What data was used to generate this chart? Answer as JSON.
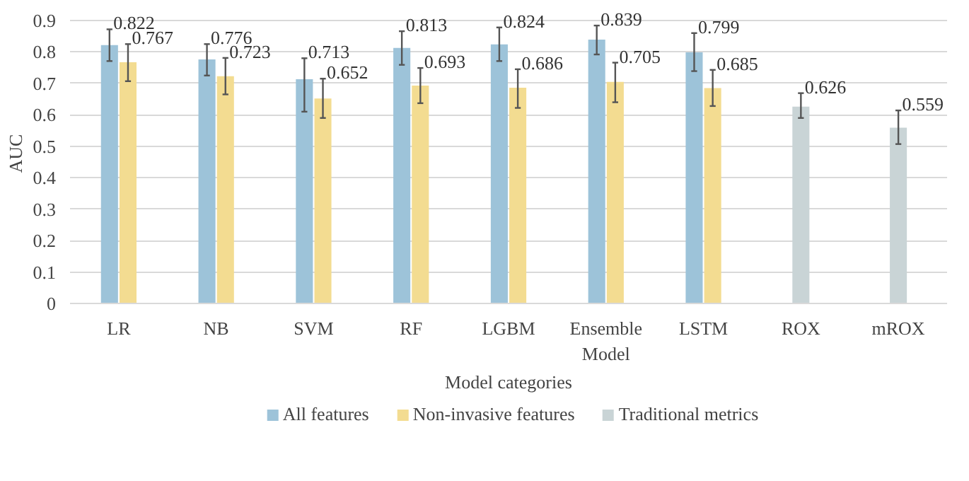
{
  "chart_data": {
    "type": "bar",
    "xlabel": "Model categories",
    "ylabel": "AUC",
    "categories": [
      "LR",
      "NB",
      "SVM",
      "RF",
      "LGBM",
      "Ensemble Model",
      "LSTM",
      "ROX",
      "mROX"
    ],
    "series": [
      {
        "name": "All features",
        "color": "#9dc3d9",
        "values": [
          0.822,
          0.776,
          0.713,
          0.813,
          0.824,
          0.839,
          0.799,
          null,
          null
        ],
        "errors": [
          [
            0.771,
            0.872
          ],
          [
            0.725,
            0.825
          ],
          [
            0.61,
            0.78
          ],
          [
            0.759,
            0.866
          ],
          [
            0.771,
            0.878
          ],
          [
            0.792,
            0.884
          ],
          [
            0.739,
            0.86
          ],
          null,
          null
        ]
      },
      {
        "name": "Non-invasive features",
        "color": "#f3dc91",
        "values": [
          0.767,
          0.723,
          0.652,
          0.693,
          0.686,
          0.705,
          0.685,
          null,
          null
        ],
        "errors": [
          [
            0.707,
            0.825
          ],
          [
            0.665,
            0.781
          ],
          [
            0.59,
            0.715
          ],
          [
            0.637,
            0.749
          ],
          [
            0.622,
            0.745
          ],
          [
            0.64,
            0.766
          ],
          [
            0.628,
            0.743
          ],
          null,
          null
        ]
      },
      {
        "name": "Traditional metrics",
        "color": "#c9d4d6",
        "values": [
          null,
          null,
          null,
          null,
          null,
          null,
          null,
          0.626,
          0.559
        ],
        "errors": [
          null,
          null,
          null,
          null,
          null,
          null,
          null,
          [
            0.59,
            0.669
          ],
          [
            0.507,
            0.614
          ]
        ]
      }
    ],
    "ylim": [
      0,
      0.9
    ],
    "yticks": [
      0,
      0.1,
      0.2,
      0.3,
      0.4,
      0.5,
      0.6,
      0.7,
      0.8,
      0.9
    ],
    "grid": "y",
    "legend": "bottom",
    "data_labels": true
  }
}
